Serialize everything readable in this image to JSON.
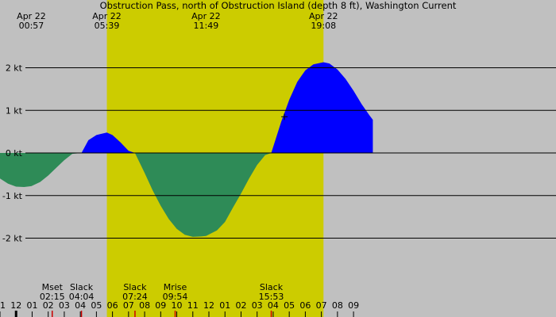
{
  "chart_data": {
    "type": "area",
    "title": "Obstruction Pass, north of Obstruction Island (depth 8 ft), Washington Current",
    "xlabel": "",
    "ylabel": "",
    "x_unit": "hours (Apr 22)",
    "xlim": [
      -1.0,
      33.6
    ],
    "ylim": [
      -2.75,
      2.6
    ],
    "daylight": [
      5.65,
      19.13
    ],
    "colors": {
      "background": "#c0c0c0",
      "daylight": "#cccc00",
      "flood": "#0000ff",
      "ebb": "#2e8b57",
      "grid": "#000000",
      "moon_marker": "#cc0000",
      "slack_marker": "#cc0000"
    },
    "y_ticks": [
      {
        "value": 2,
        "label": "2 kt"
      },
      {
        "value": 1,
        "label": "1 kt"
      },
      {
        "value": 0,
        "label": "0 kt"
      },
      {
        "value": -1,
        "label": "-1 kt"
      },
      {
        "value": -2,
        "label": "-2 kt"
      }
    ],
    "x_tick_labels": [
      "11",
      "12",
      "01",
      "02",
      "03",
      "04",
      "05",
      "06",
      "07",
      "08",
      "09",
      "10",
      "11",
      "12",
      "01",
      "02",
      "03",
      "04",
      "05",
      "06",
      "07",
      "08",
      "09"
    ],
    "x_tick_start": -1,
    "midnight_marker_hour": 0,
    "series": [
      {
        "x": [
          -1.0,
          -0.5,
          0.0,
          0.5,
          0.95,
          1.5,
          2.0,
          2.5,
          3.0,
          3.5,
          4.07,
          4.5,
          5.0,
          5.65,
          6.0,
          6.5,
          7.0,
          7.4,
          8.0,
          8.5,
          9.0,
          9.5,
          10.0,
          10.5,
          11.0,
          11.5,
          11.82,
          12.5,
          13.0,
          13.5,
          14.0,
          14.5,
          15.0,
          15.5,
          15.88,
          16.5,
          17.0,
          17.5,
          18.0,
          18.5,
          19.13,
          19.5,
          20.0,
          20.5,
          21.0,
          21.5,
          22.0,
          22.2
        ],
        "y": [
          -0.6,
          -0.72,
          -0.79,
          -0.8,
          -0.78,
          -0.68,
          -0.53,
          -0.35,
          -0.17,
          -0.02,
          0.0,
          0.3,
          0.42,
          0.48,
          0.42,
          0.25,
          0.05,
          0.0,
          -0.47,
          -0.88,
          -1.24,
          -1.55,
          -1.78,
          -1.92,
          -1.97,
          -1.96,
          -1.95,
          -1.82,
          -1.62,
          -1.28,
          -0.95,
          -0.6,
          -0.28,
          -0.05,
          0.0,
          0.73,
          1.25,
          1.67,
          1.94,
          2.08,
          2.13,
          2.1,
          1.96,
          1.74,
          1.46,
          1.15,
          0.88,
          0.78
        ]
      }
    ],
    "time_markers": [
      {
        "hour": 0.95,
        "date": "Apr 22",
        "time": "00:57"
      },
      {
        "hour": 5.65,
        "date": "Apr 22",
        "time": "05:39"
      },
      {
        "hour": 11.82,
        "date": "Apr 22",
        "time": "11:49"
      },
      {
        "hour": 19.13,
        "date": "Apr 22",
        "time": "19:08"
      }
    ],
    "events": [
      {
        "hour": 2.25,
        "label": "Mset",
        "time": "02:15"
      },
      {
        "hour": 4.07,
        "label": "Slack",
        "time": "04:04"
      },
      {
        "hour": 7.4,
        "label": "Slack",
        "time": "07:24"
      },
      {
        "hour": 9.9,
        "label": "Mrise",
        "time": "09:54"
      },
      {
        "hour": 15.88,
        "label": "Slack",
        "time": "15:53"
      }
    ],
    "cursor_marker": {
      "hour": 16.7,
      "value": 0.85
    }
  }
}
